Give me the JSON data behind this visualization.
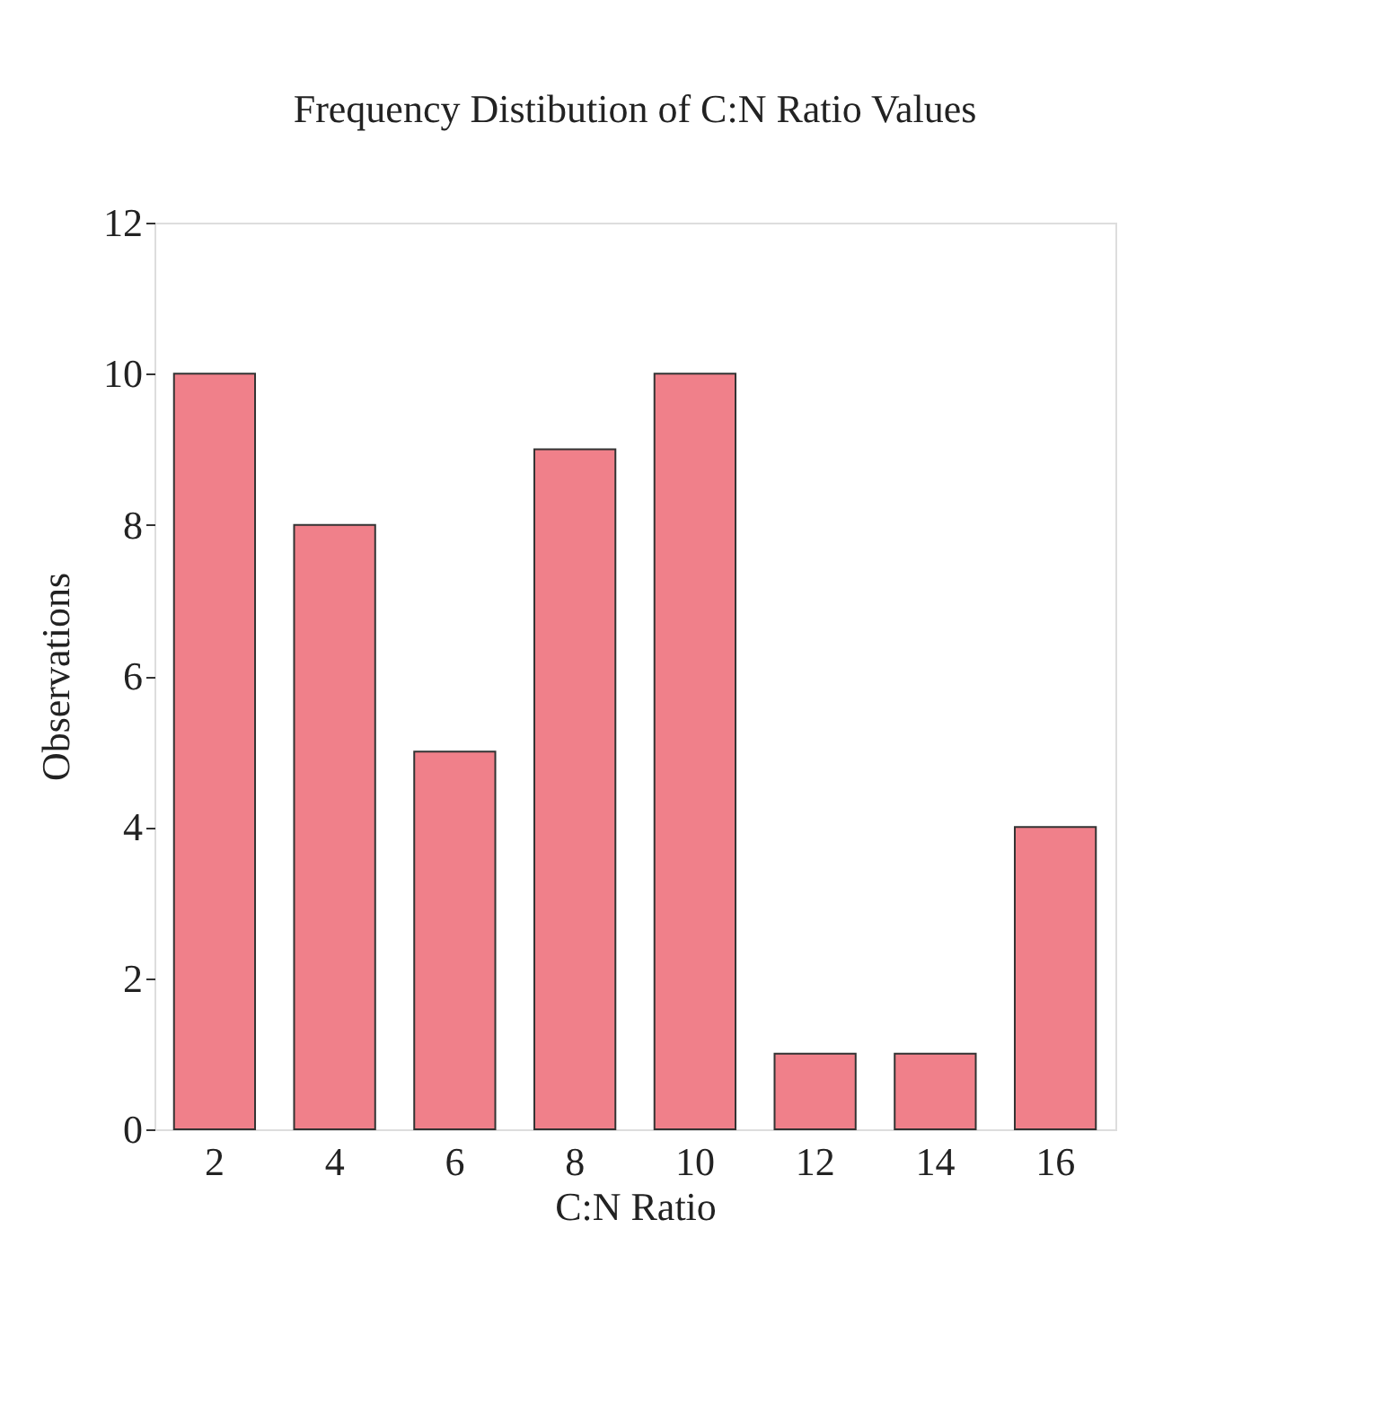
{
  "chart_data": {
    "type": "bar",
    "title": "Frequency Distibution of C:N Ratio Values",
    "xlabel": "C:N Ratio",
    "ylabel": "Observations",
    "categories": [
      "2",
      "4",
      "6",
      "8",
      "10",
      "12",
      "14",
      "16"
    ],
    "values": [
      10,
      8,
      5,
      9,
      10,
      1,
      1,
      4
    ],
    "color": "#f0808a",
    "ylim": [
      0,
      12
    ],
    "yticks": [
      0,
      2,
      4,
      6,
      8,
      10,
      12
    ],
    "grid": false
  }
}
